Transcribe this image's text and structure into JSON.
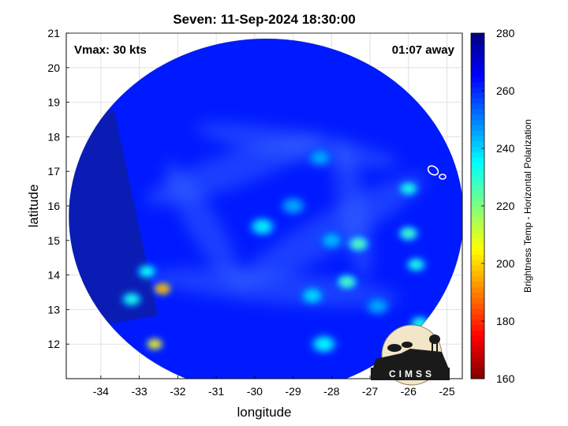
{
  "chart_data": {
    "type": "heatmap",
    "title": "Seven: 11-Sep-2024 18:30:00",
    "xlabel": "longitude",
    "ylabel": "latitude",
    "xlim": [
      -34.9,
      -24.6
    ],
    "ylim": [
      11.0,
      21.0
    ],
    "xticks": [
      -34,
      -33,
      -32,
      -31,
      -30,
      -29,
      -28,
      -27,
      -26,
      -25
    ],
    "yticks": [
      12,
      13,
      14,
      15,
      16,
      17,
      18,
      19,
      20,
      21
    ],
    "grid": true,
    "annotations": {
      "vmax": "Vmax: 30 kts",
      "time_offset": "01:07 away"
    },
    "colorbar": {
      "label": "Brightness Temp - Horizontal Polarization",
      "min": 160,
      "max": 280,
      "ticks": [
        160,
        180,
        200,
        220,
        240,
        260,
        280
      ],
      "colormap": "jet"
    },
    "swath": {
      "center_lon": -29.7,
      "center_lat": 15.7,
      "background_temp": 262
    },
    "features": [
      {
        "lon": -29.8,
        "lat": 15.4,
        "temp": 237
      },
      {
        "lon": -27.3,
        "lat": 14.9,
        "temp": 225
      },
      {
        "lon": -27.6,
        "lat": 13.8,
        "temp": 226
      },
      {
        "lon": -26.0,
        "lat": 15.2,
        "temp": 228
      },
      {
        "lon": -26.0,
        "lat": 16.5,
        "temp": 232
      },
      {
        "lon": -25.8,
        "lat": 14.3,
        "temp": 232
      },
      {
        "lon": -28.5,
        "lat": 13.4,
        "temp": 240
      },
      {
        "lon": -28.2,
        "lat": 12.0,
        "temp": 236
      },
      {
        "lon": -25.7,
        "lat": 12.6,
        "temp": 232
      },
      {
        "lon": -32.4,
        "lat": 13.6,
        "temp": 190
      },
      {
        "lon": -32.6,
        "lat": 12.0,
        "temp": 200
      },
      {
        "lon": -33.2,
        "lat": 13.3,
        "temp": 232
      },
      {
        "lon": -32.8,
        "lat": 14.1,
        "temp": 234
      },
      {
        "lon": -28.3,
        "lat": 17.4,
        "temp": 246
      },
      {
        "lon": -29.0,
        "lat": 16.0,
        "temp": 246
      },
      {
        "lon": -28.0,
        "lat": 15.0,
        "temp": 244
      },
      {
        "lon": -26.8,
        "lat": 13.1,
        "temp": 246
      }
    ]
  },
  "logo": {
    "text": "CIMSS"
  }
}
